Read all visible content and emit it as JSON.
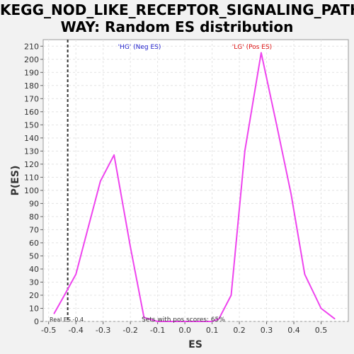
{
  "chart_data": {
    "type": "line",
    "title_lines": [
      "KEGG_NOD_LIKE_RECEPTOR_SIGNALING_PATH",
      "WAY: Random ES distribution"
    ],
    "xlabel": "ES",
    "ylabel": "P(ES)",
    "xlim": [
      -0.52,
      0.6
    ],
    "ylim": [
      0,
      215
    ],
    "x_ticks": [
      -0.5,
      -0.4,
      -0.3,
      -0.2,
      -0.1,
      0.0,
      0.1,
      0.2,
      0.3,
      0.4,
      0.5
    ],
    "x_tick_labels": [
      "-0.5",
      "-0.4",
      "-0.3",
      "-0.2",
      "-0.1",
      "0.0",
      "0.1",
      "0.2",
      "0.3",
      "0.4",
      "0.5"
    ],
    "y_ticks": [
      0,
      10,
      20,
      30,
      40,
      50,
      60,
      70,
      80,
      90,
      100,
      110,
      120,
      130,
      140,
      150,
      160,
      170,
      180,
      190,
      200,
      210
    ],
    "grid": true,
    "line_color": "#ee44ee",
    "series": [
      {
        "x": [
          -0.48,
          -0.45,
          -0.4,
          -0.31,
          -0.26,
          -0.2,
          -0.15,
          -0.1,
          -0.05,
          0.0,
          0.05,
          0.1,
          0.125,
          0.17,
          0.22,
          0.28,
          0.34,
          0.39,
          0.44,
          0.5,
          0.55
        ],
        "y": [
          6,
          17,
          36,
          107,
          127,
          57,
          3,
          0,
          0,
          0,
          0,
          0,
          2,
          20,
          130,
          205,
          147,
          97,
          36,
          10,
          2
        ]
      }
    ],
    "real_es": -0.43,
    "annotations": {
      "neg_label": "'HG' (Neg ES)",
      "pos_label": "'LG' (Pos ES)",
      "real_es_label": "Real ES -0.4",
      "pos_scores_label": "Sets with pos scores: 65%"
    },
    "colors": {
      "neg_label": "#2222cc",
      "pos_label": "#dd1111",
      "real_es_line": "#333333"
    }
  }
}
